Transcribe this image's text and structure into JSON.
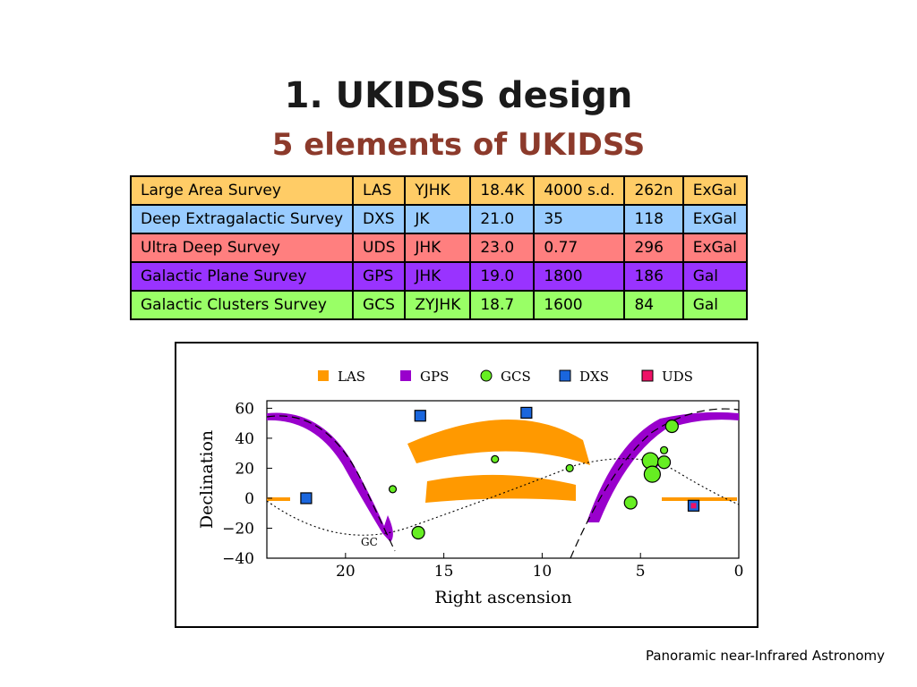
{
  "slide": {
    "title": "1. UKIDSS design",
    "subtitle": "5 elements of UKIDSS",
    "footer": "Panoramic near-Infrared Astronomy"
  },
  "table": {
    "rows": [
      {
        "cells": [
          "Large Area Survey",
          "LAS",
          "YJHK",
          "18.4K",
          "4000 s.d.",
          "262n",
          "ExGal"
        ],
        "color": "#ffcc66"
      },
      {
        "cells": [
          "Deep Extragalactic Survey",
          "DXS",
          "JK",
          "21.0",
          "35",
          "118",
          "ExGal"
        ],
        "color": "#99ccff"
      },
      {
        "cells": [
          "Ultra Deep Survey",
          "UDS",
          "JHK",
          "23.0",
          "0.77",
          "296",
          "ExGal"
        ],
        "color": "#ff7f7f"
      },
      {
        "cells": [
          "Galactic Plane Survey",
          "GPS",
          "JHK",
          "19.0",
          "1800",
          "186",
          "Gal"
        ],
        "color": "#9933ff"
      },
      {
        "cells": [
          "Galactic Clusters Survey",
          "GCS",
          "ZYJHK",
          "18.7",
          "1600",
          "84",
          "Gal"
        ],
        "color": "#99ff66"
      }
    ]
  },
  "chart_data": {
    "type": "scatter",
    "xlabel": "Right ascension",
    "ylabel": "Declination",
    "xlim": [
      24,
      0
    ],
    "ylim": [
      -40,
      65
    ],
    "xticks": [
      "20",
      "15",
      "10",
      "5",
      "0"
    ],
    "yticks": [
      "60",
      "40",
      "20",
      "0",
      "−20",
      "−40"
    ],
    "legend": [
      {
        "name": "LAS",
        "color": "#ff9900"
      },
      {
        "name": "GPS",
        "color": "#9900cc"
      },
      {
        "name": "GCS",
        "color": "#66ee22"
      },
      {
        "name": "DXS",
        "color": "#1a66dd"
      },
      {
        "name": "UDS",
        "color": "#ee1166"
      }
    ],
    "annotation": "GC",
    "dxs_fields": [
      {
        "ra": 22.0,
        "dec": 0
      },
      {
        "ra": 16.2,
        "dec": 55
      },
      {
        "ra": 10.8,
        "dec": 57
      },
      {
        "ra": 2.3,
        "dec": -5
      }
    ],
    "uds_fields": [
      {
        "ra": 2.3,
        "dec": -5
      }
    ],
    "gcs_clusters": [
      {
        "ra": 17.6,
        "dec": 6,
        "size": "small"
      },
      {
        "ra": 16.3,
        "dec": -23,
        "size": "medium"
      },
      {
        "ra": 12.4,
        "dec": 26,
        "size": "small"
      },
      {
        "ra": 8.6,
        "dec": 20,
        "size": "small"
      },
      {
        "ra": 5.5,
        "dec": -3,
        "size": "medium"
      },
      {
        "ra": 4.5,
        "dec": 25,
        "size": "large"
      },
      {
        "ra": 4.4,
        "dec": 16,
        "size": "large"
      },
      {
        "ra": 3.8,
        "dec": 24,
        "size": "medium"
      },
      {
        "ra": 3.8,
        "dec": 32,
        "size": "small"
      },
      {
        "ra": 3.4,
        "dec": 48,
        "size": "medium"
      }
    ]
  }
}
